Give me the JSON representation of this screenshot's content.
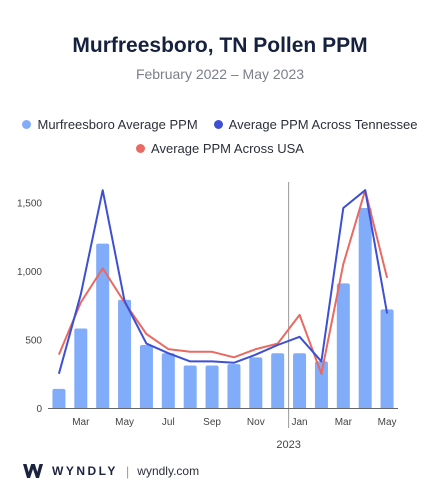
{
  "header": {
    "title": "Murfreesboro, TN Pollen PPM",
    "subtitle": "February 2022 – May 2023"
  },
  "colors": {
    "bar": "#80acfa",
    "tennessee": "#3d4fd4",
    "usa": "#e86a62",
    "axis": "#666666",
    "divider": "#9a9a9a"
  },
  "chart_data": {
    "type": "bar",
    "categories": [
      "Feb 2022",
      "Mar 2022",
      "Apr 2022",
      "May 2022",
      "Jun 2022",
      "Jul 2022",
      "Aug 2022",
      "Sep 2022",
      "Oct 2022",
      "Nov 2022",
      "Dec 2022",
      "Jan 2023",
      "Feb 2023",
      "Mar 2023",
      "Apr 2023",
      "May 2023"
    ],
    "series": [
      {
        "name": "Murfreesboro Average PPM",
        "kind": "bar",
        "values": [
          140,
          580,
          1200,
          790,
          460,
          400,
          310,
          310,
          320,
          370,
          400,
          400,
          340,
          910,
          1460,
          720
        ]
      },
      {
        "name": "Average PPM Across Tennessee",
        "kind": "line",
        "values": [
          250,
          830,
          1590,
          780,
          470,
          400,
          340,
          340,
          330,
          390,
          460,
          520,
          340,
          1460,
          1590,
          690
        ]
      },
      {
        "name": "Average PPM Across USA",
        "kind": "line",
        "values": [
          390,
          770,
          1020,
          770,
          540,
          430,
          410,
          410,
          370,
          430,
          470,
          680,
          250,
          1050,
          1590,
          950
        ]
      }
    ],
    "ylim": [
      0,
      1650
    ],
    "yticks": [
      0,
      500,
      1000,
      1500
    ],
    "ytick_labels": [
      "0",
      "500",
      "1,000",
      "1,500"
    ],
    "xtick_labels": [
      {
        "label": "Mar",
        "index": 1
      },
      {
        "label": "May",
        "index": 3
      },
      {
        "label": "Jul",
        "index": 5
      },
      {
        "label": "Sep",
        "index": 7
      },
      {
        "label": "Nov",
        "index": 9
      },
      {
        "label": "Jan",
        "index": 11
      },
      {
        "label": "Mar",
        "index": 13
      },
      {
        "label": "May",
        "index": 15
      }
    ],
    "year_label": "2023",
    "grid": false,
    "legend_position": "top"
  },
  "footer": {
    "brand": "WYNDLY",
    "separator": "|",
    "site": "wyndly.com"
  }
}
